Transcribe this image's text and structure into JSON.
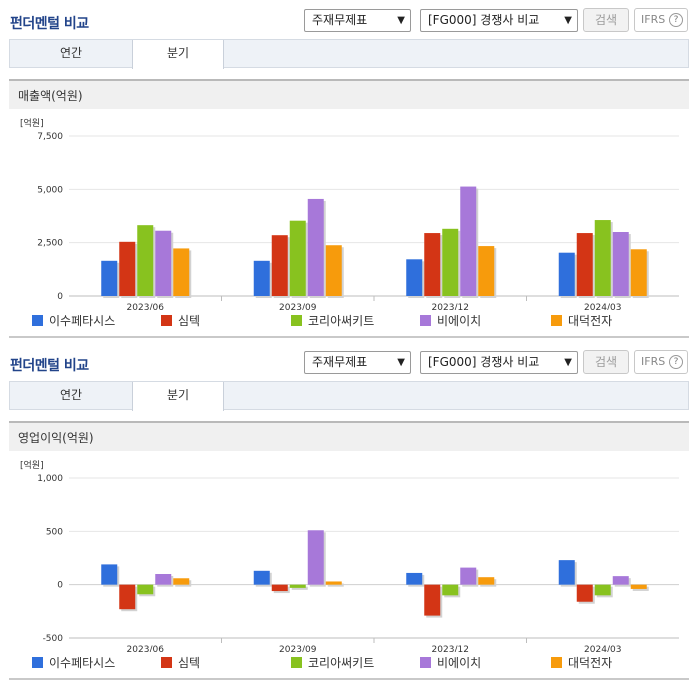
{
  "panels": [
    {
      "title": "펀더멘털 비교",
      "select1": "주재무제표",
      "select2": "[FG000] 경쟁사 비교",
      "search_label": "검색",
      "ifrs_label": "IFRS",
      "help_glyph": "?",
      "tabs": {
        "annual": "연간",
        "quarter": "분기"
      },
      "chart_title": "매출액(억원)"
    },
    {
      "title": "펀더멘털 비교",
      "select1": "주재무제표",
      "select2": "[FG000] 경쟁사 비교",
      "search_label": "검색",
      "ifrs_label": "IFRS",
      "help_glyph": "?",
      "tabs": {
        "annual": "연간",
        "quarter": "분기"
      },
      "chart_title": "영업이익(억원)"
    }
  ],
  "colors": [
    "#2f6fdc",
    "#d33515",
    "#88c21f",
    "#a778d9",
    "#f79b0c"
  ],
  "chart_data": [
    {
      "type": "bar",
      "unit_label": "[억원]",
      "categories": [
        "2023/06",
        "2023/09",
        "2023/12",
        "2024/03"
      ],
      "ylim": [
        0,
        7500
      ],
      "yticks": [
        0,
        2500,
        5000,
        7500
      ],
      "ytick_labels": [
        "0",
        "2,500",
        "5,000",
        "7,500"
      ],
      "grid": true,
      "legend_position": "bottom",
      "series": [
        {
          "name": "이수페타시스",
          "values": [
            1650,
            1650,
            1720,
            2030
          ]
        },
        {
          "name": "심텍",
          "values": [
            2540,
            2850,
            2950,
            2950
          ]
        },
        {
          "name": "코리아써키트",
          "values": [
            3320,
            3530,
            3150,
            3560
          ]
        },
        {
          "name": "비에이치",
          "values": [
            3060,
            4550,
            5130,
            3000
          ]
        },
        {
          "name": "대덕전자",
          "values": [
            2230,
            2380,
            2340,
            2190
          ]
        }
      ]
    },
    {
      "type": "bar",
      "unit_label": "[억원]",
      "categories": [
        "2023/06",
        "2023/09",
        "2023/12",
        "2024/03"
      ],
      "ylim": [
        -500,
        1000
      ],
      "yticks": [
        -500,
        0,
        500,
        1000
      ],
      "ytick_labels": [
        "-500",
        "0",
        "500",
        "1,000"
      ],
      "grid": true,
      "legend_position": "bottom",
      "series": [
        {
          "name": "이수페타시스",
          "values": [
            190,
            130,
            110,
            230
          ]
        },
        {
          "name": "심텍",
          "values": [
            -230,
            -60,
            -290,
            -160
          ]
        },
        {
          "name": "코리아써키트",
          "values": [
            -90,
            -30,
            -100,
            -100
          ]
        },
        {
          "name": "비에이치",
          "values": [
            100,
            510,
            160,
            80
          ]
        },
        {
          "name": "대덕전자",
          "values": [
            60,
            30,
            70,
            -40
          ]
        }
      ]
    }
  ]
}
